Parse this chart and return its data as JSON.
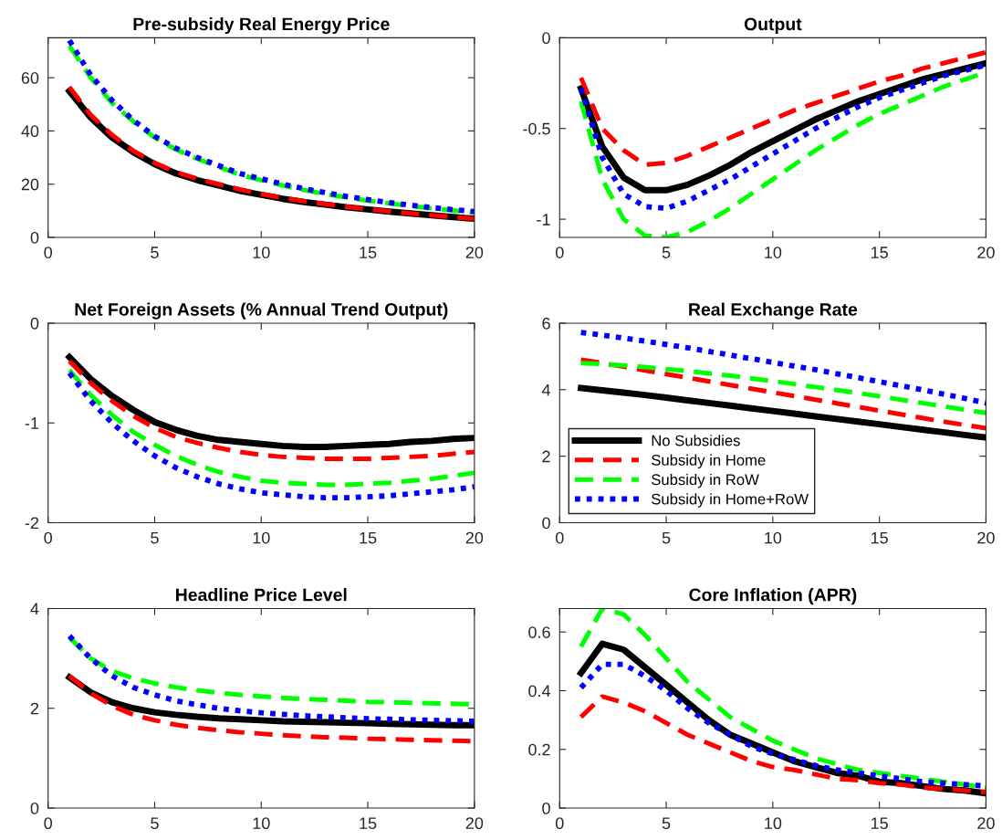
{
  "chart_data": [
    {
      "type": "line",
      "title": "Pre-subsidy Real Energy Price",
      "x": [
        1,
        2,
        3,
        4,
        5,
        6,
        7,
        8,
        9,
        10,
        11,
        12,
        13,
        14,
        15,
        16,
        17,
        18,
        19,
        20
      ],
      "xlim": [
        0,
        20
      ],
      "xticks": [
        0,
        5,
        10,
        15,
        20
      ],
      "ylim": [
        0,
        75
      ],
      "yticks": [
        0,
        20,
        40,
        60
      ],
      "grid": false,
      "legend": false,
      "series": [
        {
          "color": "#000000",
          "line_style": "solid",
          "values": [
            55,
            45,
            37.5,
            32,
            27.5,
            24,
            21.5,
            19.5,
            17.5,
            16,
            14.5,
            13.3,
            12.3,
            11.3,
            10.5,
            9.7,
            9,
            8.3,
            7.6,
            7
          ]
        },
        {
          "color": "#ff0000",
          "line_style": "dashed",
          "values": [
            56.5,
            46,
            38.5,
            32.5,
            28,
            24.5,
            22,
            20,
            18,
            16.3,
            14.8,
            13.6,
            12.5,
            11.5,
            10.6,
            9.8,
            9,
            8.3,
            7.6,
            7
          ]
        },
        {
          "color": "#00ff00",
          "line_style": "dashed",
          "values": [
            72,
            60,
            50.5,
            43.5,
            37.5,
            33,
            29.5,
            26.5,
            23.5,
            21.5,
            19.5,
            17.8,
            16.3,
            15,
            13.8,
            12.8,
            11.8,
            10.9,
            10.1,
            9.3
          ]
        },
        {
          "color": "#0000ff",
          "line_style": "dotted",
          "values": [
            74,
            61,
            51.5,
            44,
            38,
            33.5,
            30,
            27,
            24,
            22,
            20,
            18.3,
            16.8,
            15.4,
            14.2,
            13.1,
            12.1,
            11.2,
            10.4,
            9.7
          ]
        }
      ]
    },
    {
      "type": "line",
      "title": "Output",
      "x": [
        1,
        2,
        3,
        4,
        5,
        6,
        7,
        8,
        9,
        10,
        11,
        12,
        13,
        14,
        15,
        16,
        17,
        18,
        19,
        20
      ],
      "xlim": [
        0,
        20
      ],
      "xticks": [
        0,
        5,
        10,
        15,
        20
      ],
      "ylim": [
        -1.1,
        0
      ],
      "yticks": [
        -1,
        -0.5,
        0
      ],
      "grid": false,
      "legend": false,
      "series": [
        {
          "color": "#000000",
          "line_style": "solid",
          "values": [
            -0.28,
            -0.6,
            -0.77,
            -0.84,
            -0.84,
            -0.81,
            -0.76,
            -0.7,
            -0.63,
            -0.57,
            -0.51,
            -0.45,
            -0.4,
            -0.35,
            -0.31,
            -0.27,
            -0.23,
            -0.2,
            -0.17,
            -0.14
          ]
        },
        {
          "color": "#ff0000",
          "line_style": "dashed",
          "values": [
            -0.22,
            -0.5,
            -0.62,
            -0.7,
            -0.69,
            -0.65,
            -0.6,
            -0.55,
            -0.5,
            -0.45,
            -0.4,
            -0.36,
            -0.32,
            -0.28,
            -0.24,
            -0.21,
            -0.17,
            -0.14,
            -0.11,
            -0.08
          ]
        },
        {
          "color": "#00ff00",
          "line_style": "dashed",
          "values": [
            -0.35,
            -0.78,
            -1.0,
            -1.09,
            -1.1,
            -1.07,
            -1.01,
            -0.94,
            -0.86,
            -0.78,
            -0.7,
            -0.62,
            -0.55,
            -0.48,
            -0.42,
            -0.37,
            -0.32,
            -0.27,
            -0.23,
            -0.19
          ]
        },
        {
          "color": "#0000ff",
          "line_style": "dotted",
          "values": [
            -0.28,
            -0.66,
            -0.86,
            -0.93,
            -0.94,
            -0.9,
            -0.84,
            -0.78,
            -0.71,
            -0.64,
            -0.57,
            -0.5,
            -0.44,
            -0.38,
            -0.33,
            -0.29,
            -0.25,
            -0.21,
            -0.18,
            -0.15
          ]
        }
      ]
    },
    {
      "type": "line",
      "title": "Net Foreign Assets (% Annual Trend Output)",
      "x": [
        1,
        2,
        3,
        4,
        5,
        6,
        7,
        8,
        9,
        10,
        11,
        12,
        13,
        14,
        15,
        16,
        17,
        18,
        19,
        20
      ],
      "xlim": [
        0,
        20
      ],
      "xticks": [
        0,
        5,
        10,
        15,
        20
      ],
      "ylim": [
        -2,
        0
      ],
      "yticks": [
        -2,
        -1,
        0
      ],
      "grid": false,
      "legend": false,
      "series": [
        {
          "color": "#000000",
          "line_style": "solid",
          "values": [
            -0.34,
            -0.56,
            -0.73,
            -0.87,
            -0.99,
            -1.07,
            -1.13,
            -1.17,
            -1.19,
            -1.21,
            -1.23,
            -1.24,
            -1.24,
            -1.23,
            -1.22,
            -1.21,
            -1.19,
            -1.18,
            -1.16,
            -1.15
          ]
        },
        {
          "color": "#ff0000",
          "line_style": "dashed",
          "values": [
            -0.38,
            -0.6,
            -0.78,
            -0.93,
            -1.05,
            -1.14,
            -1.2,
            -1.25,
            -1.29,
            -1.32,
            -1.34,
            -1.35,
            -1.36,
            -1.36,
            -1.36,
            -1.35,
            -1.34,
            -1.33,
            -1.31,
            -1.29
          ]
        },
        {
          "color": "#00ff00",
          "line_style": "dashed",
          "values": [
            -0.47,
            -0.72,
            -0.92,
            -1.09,
            -1.22,
            -1.33,
            -1.42,
            -1.49,
            -1.54,
            -1.58,
            -1.6,
            -1.61,
            -1.62,
            -1.62,
            -1.61,
            -1.6,
            -1.58,
            -1.56,
            -1.53,
            -1.5
          ]
        },
        {
          "color": "#0000ff",
          "line_style": "dotted",
          "values": [
            -0.5,
            -0.78,
            -1.0,
            -1.18,
            -1.33,
            -1.45,
            -1.54,
            -1.61,
            -1.66,
            -1.7,
            -1.72,
            -1.74,
            -1.75,
            -1.75,
            -1.74,
            -1.73,
            -1.71,
            -1.69,
            -1.67,
            -1.64
          ]
        }
      ]
    },
    {
      "type": "line",
      "title": "Real Exchange Rate",
      "x": [
        1,
        2,
        3,
        4,
        5,
        6,
        7,
        8,
        9,
        10,
        11,
        12,
        13,
        14,
        15,
        16,
        17,
        18,
        19,
        20
      ],
      "xlim": [
        0,
        20
      ],
      "xticks": [
        0,
        5,
        10,
        15,
        20
      ],
      "ylim": [
        0,
        6
      ],
      "yticks": [
        0,
        2,
        4,
        6
      ],
      "grid": false,
      "legend": "bottom left",
      "series": [
        {
          "name": "No Subsidies",
          "color": "#000000",
          "line_style": "solid",
          "values": [
            4.05,
            3.98,
            3.91,
            3.84,
            3.76,
            3.68,
            3.6,
            3.52,
            3.44,
            3.36,
            3.28,
            3.2,
            3.12,
            3.04,
            2.96,
            2.88,
            2.8,
            2.72,
            2.64,
            2.56
          ]
        },
        {
          "name": "Subsidy in Home",
          "color": "#ff0000",
          "line_style": "dashed",
          "values": [
            4.9,
            4.8,
            4.69,
            4.58,
            4.47,
            4.36,
            4.25,
            4.14,
            4.03,
            3.92,
            3.81,
            3.7,
            3.59,
            3.48,
            3.37,
            3.26,
            3.15,
            3.04,
            2.94,
            2.84
          ]
        },
        {
          "name": "Subsidy in RoW",
          "color": "#00ff00",
          "line_style": "dashed",
          "values": [
            4.8,
            4.77,
            4.73,
            4.68,
            4.62,
            4.56,
            4.49,
            4.42,
            4.34,
            4.26,
            4.17,
            4.08,
            3.99,
            3.9,
            3.8,
            3.7,
            3.6,
            3.5,
            3.4,
            3.3
          ]
        },
        {
          "name": "Subsidy in Home+RoW",
          "color": "#0000ff",
          "line_style": "dotted",
          "values": [
            5.72,
            5.64,
            5.55,
            5.46,
            5.36,
            5.26,
            5.15,
            5.04,
            4.93,
            4.82,
            4.71,
            4.6,
            4.48,
            4.36,
            4.24,
            4.12,
            4.0,
            3.87,
            3.74,
            3.6
          ]
        }
      ]
    },
    {
      "type": "line",
      "title": "Headline Price Level",
      "x": [
        1,
        2,
        3,
        4,
        5,
        6,
        7,
        8,
        9,
        10,
        11,
        12,
        13,
        14,
        15,
        16,
        17,
        18,
        19,
        20
      ],
      "xlim": [
        0,
        20
      ],
      "xticks": [
        0,
        5,
        10,
        15,
        20
      ],
      "ylim": [
        0,
        4
      ],
      "yticks": [
        0,
        2,
        4
      ],
      "grid": false,
      "legend": false,
      "series": [
        {
          "color": "#000000",
          "line_style": "solid",
          "values": [
            2.62,
            2.32,
            2.12,
            2.0,
            1.92,
            1.87,
            1.83,
            1.8,
            1.78,
            1.76,
            1.74,
            1.73,
            1.72,
            1.71,
            1.7,
            1.69,
            1.68,
            1.67,
            1.66,
            1.66
          ]
        },
        {
          "color": "#ff0000",
          "line_style": "dashed",
          "values": [
            2.65,
            2.3,
            2.05,
            1.87,
            1.76,
            1.67,
            1.61,
            1.56,
            1.52,
            1.49,
            1.46,
            1.44,
            1.42,
            1.41,
            1.39,
            1.38,
            1.37,
            1.36,
            1.35,
            1.34
          ]
        },
        {
          "color": "#00ff00",
          "line_style": "dashed",
          "values": [
            3.42,
            3.0,
            2.75,
            2.6,
            2.5,
            2.42,
            2.36,
            2.31,
            2.27,
            2.24,
            2.21,
            2.19,
            2.17,
            2.15,
            2.13,
            2.12,
            2.11,
            2.1,
            2.09,
            2.08
          ]
        },
        {
          "color": "#0000ff",
          "line_style": "dotted",
          "values": [
            3.45,
            3.0,
            2.65,
            2.42,
            2.27,
            2.15,
            2.07,
            2.0,
            1.95,
            1.91,
            1.88,
            1.85,
            1.83,
            1.81,
            1.79,
            1.78,
            1.77,
            1.76,
            1.75,
            1.74
          ]
        }
      ]
    },
    {
      "type": "line",
      "title": "Core Inflation (APR)",
      "x": [
        1,
        2,
        3,
        4,
        5,
        6,
        7,
        8,
        9,
        10,
        11,
        12,
        13,
        14,
        15,
        16,
        17,
        18,
        19,
        20
      ],
      "xlim": [
        0,
        20
      ],
      "xticks": [
        0,
        5,
        10,
        15,
        20
      ],
      "ylim": [
        0,
        0.68
      ],
      "yticks": [
        0,
        0.2,
        0.4,
        0.6
      ],
      "grid": false,
      "legend": false,
      "series": [
        {
          "color": "#000000",
          "line_style": "solid",
          "values": [
            0.46,
            0.56,
            0.54,
            0.48,
            0.42,
            0.36,
            0.3,
            0.25,
            0.22,
            0.19,
            0.16,
            0.14,
            0.12,
            0.11,
            0.09,
            0.085,
            0.075,
            0.065,
            0.06,
            0.05
          ]
        },
        {
          "color": "#ff0000",
          "line_style": "dashed",
          "values": [
            0.31,
            0.38,
            0.36,
            0.33,
            0.29,
            0.25,
            0.22,
            0.19,
            0.16,
            0.14,
            0.13,
            0.115,
            0.1,
            0.095,
            0.085,
            0.08,
            0.07,
            0.065,
            0.06,
            0.055
          ]
        },
        {
          "color": "#00ff00",
          "line_style": "dashed",
          "values": [
            0.55,
            0.68,
            0.66,
            0.59,
            0.51,
            0.43,
            0.37,
            0.31,
            0.27,
            0.23,
            0.2,
            0.17,
            0.15,
            0.13,
            0.12,
            0.11,
            0.1,
            0.09,
            0.08,
            0.07
          ]
        },
        {
          "color": "#0000ff",
          "line_style": "dotted",
          "values": [
            0.41,
            0.49,
            0.49,
            0.45,
            0.4,
            0.34,
            0.29,
            0.25,
            0.21,
            0.185,
            0.165,
            0.145,
            0.13,
            0.12,
            0.11,
            0.1,
            0.09,
            0.085,
            0.08,
            0.075
          ]
        }
      ]
    }
  ]
}
